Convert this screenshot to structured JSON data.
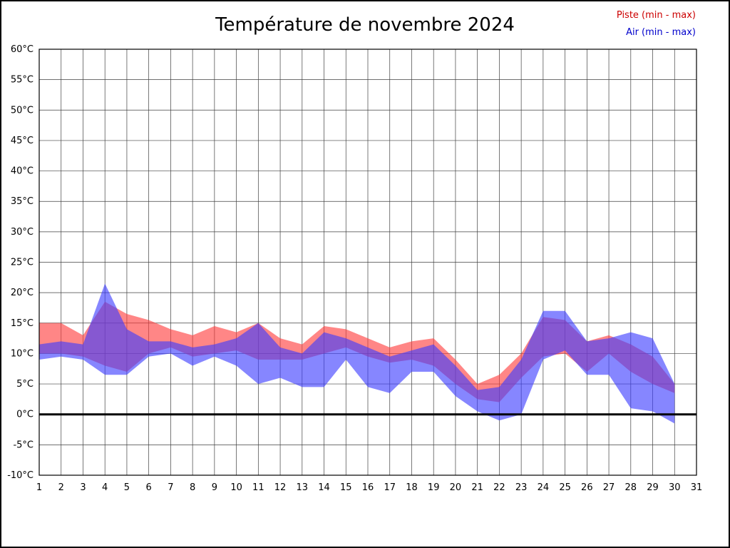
{
  "title": "Température de novembre 2024",
  "legend": {
    "piste_label": "Piste (min - max)",
    "air_label": "Air (min - max)"
  },
  "colors": {
    "piste": "#ff3c3c",
    "air": "#3c3cff",
    "piste_legend_text": "#cc0000",
    "air_legend_text": "#0000cc",
    "grid": "#404040",
    "zero_line": "#000000"
  },
  "chart_data": {
    "type": "area",
    "title": "Température de novembre 2024",
    "xlabel": "",
    "ylabel": "",
    "x": [
      1,
      2,
      3,
      4,
      5,
      6,
      7,
      8,
      9,
      10,
      11,
      12,
      13,
      14,
      15,
      16,
      17,
      18,
      19,
      20,
      21,
      22,
      23,
      24,
      25,
      26,
      27,
      28,
      29,
      30
    ],
    "xlim": [
      1,
      31
    ],
    "ylim": [
      -10,
      60
    ],
    "ytick_step": 5,
    "ytick_suffix": "°C",
    "grid": true,
    "legend_position": "top-right",
    "series": [
      {
        "key": "piste",
        "name": "Piste (min - max)",
        "color": "#ff3c3c",
        "min": [
          10,
          10,
          9.5,
          8,
          7,
          10,
          11,
          9.5,
          10,
          10.5,
          9,
          9,
          9,
          10,
          11,
          9.5,
          8.5,
          9,
          8,
          5,
          2.5,
          2,
          6,
          9.5,
          10,
          7,
          10,
          7,
          5,
          3.5
        ],
        "max": [
          15,
          15,
          13,
          18.5,
          16.5,
          15.5,
          14,
          13,
          14.5,
          13.5,
          15,
          12.5,
          11.5,
          14.5,
          14,
          12.5,
          11,
          12,
          12.5,
          9,
          5,
          6.5,
          10,
          16,
          15.5,
          12,
          13,
          11.5,
          9.5,
          5
        ]
      },
      {
        "key": "air",
        "name": "Air (min - max)",
        "color": "#3c3cff",
        "min": [
          9,
          9.5,
          9,
          6.5,
          6.5,
          9.5,
          10,
          8,
          9.5,
          8,
          5,
          6,
          4.5,
          4.5,
          9,
          4.5,
          3.5,
          7,
          7,
          3,
          0.5,
          -1,
          0,
          9,
          10.5,
          6.5,
          6.5,
          1,
          0.5,
          -1.5
        ],
        "max": [
          11.5,
          12,
          11.5,
          21.5,
          14,
          12,
          12,
          11,
          11.5,
          12.5,
          15,
          11,
          10,
          13.5,
          12.5,
          11,
          9.5,
          10.5,
          11.5,
          8,
          4,
          4.5,
          9,
          17,
          17,
          12,
          12.5,
          13.5,
          12.5,
          5
        ]
      }
    ]
  }
}
